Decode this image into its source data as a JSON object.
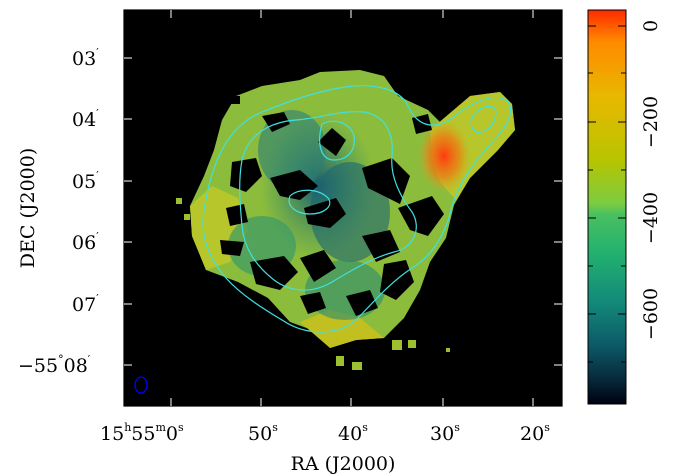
{
  "figure": {
    "xlabel": "RA (J2000)",
    "ylabel": "DEC (J2000)",
    "ra_ticks": [
      {
        "h": "15",
        "m": "55",
        "s": "0",
        "label_kind": "full"
      },
      {
        "s": "50"
      },
      {
        "s": "40"
      },
      {
        "s": "30"
      },
      {
        "s": "20"
      }
    ],
    "dec_ticks": [
      {
        "text": "03",
        "prime": "′"
      },
      {
        "text": "04",
        "prime": "′"
      },
      {
        "text": "05",
        "prime": "′"
      },
      {
        "text": "06",
        "prime": "′"
      },
      {
        "text": "07",
        "prime": "′"
      },
      {
        "text": "−55",
        "deg": "°",
        "text2": "08",
        "prime": "′"
      }
    ],
    "colorbar": {
      "ticks": [
        "0",
        "−200",
        "−400",
        "−600"
      ],
      "colors": [
        "#ff2a00",
        "#ff8a00",
        "#e8b800",
        "#b8c400",
        "#5ec85a",
        "#22b070",
        "#138a7a",
        "#0c5a68",
        "#062838",
        "#000010"
      ]
    },
    "contour_color": "#40e0e0",
    "beam_color": "#0000ff",
    "sky_colors": [
      "#c0c820",
      "#88b838",
      "#3a9a6a",
      "#1f6e74",
      "#e07010"
    ]
  }
}
